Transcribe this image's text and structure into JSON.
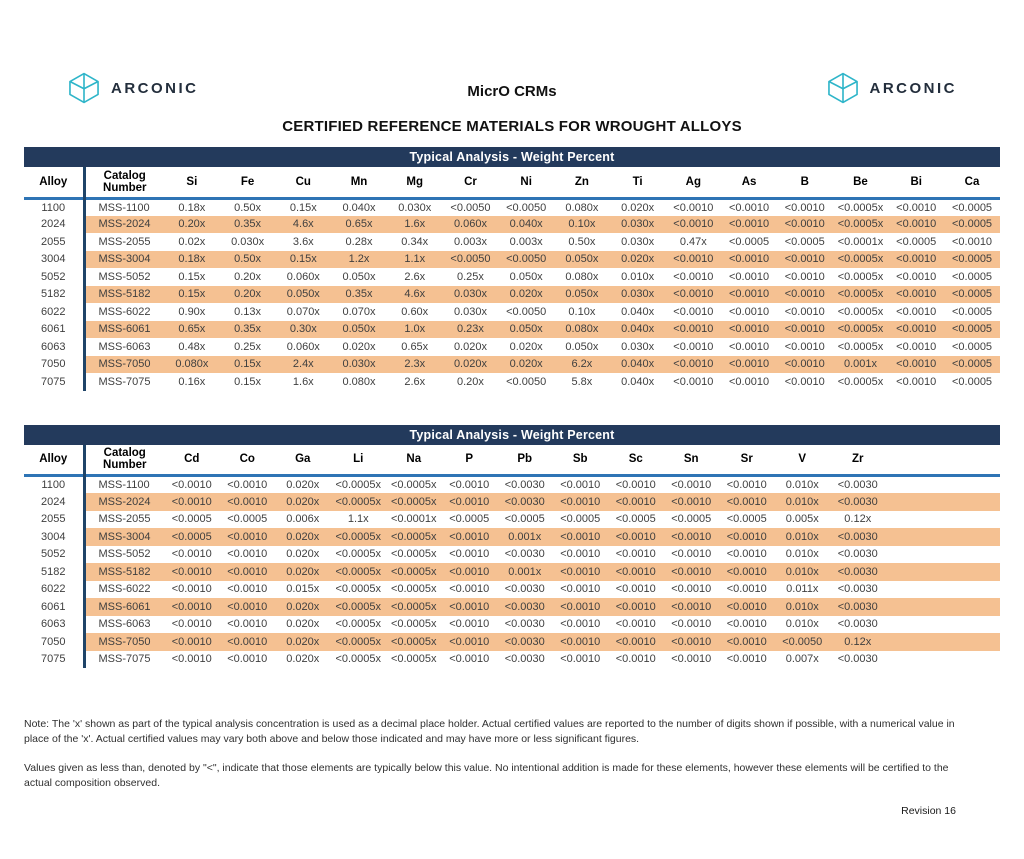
{
  "colors": {
    "navy": "#233A5C",
    "rule": "#2E74B5",
    "bar": "#1F4468",
    "stripe": "#F5C192",
    "teal": "#2EB5C9",
    "text": "#3F3F3F"
  },
  "header": {
    "brand": "ARCONIC",
    "product": "MicrO CRMs",
    "title": "CERTIFIED REFERENCE MATERIALS FOR WROUGHT ALLOYS"
  },
  "tables": [
    {
      "banner": "Typical Analysis - Weight Percent",
      "columns": [
        "Alloy",
        "Catalog Number",
        "Si",
        "Fe",
        "Cu",
        "Mn",
        "Mg",
        "Cr",
        "Ni",
        "Zn",
        "Ti",
        "Ag",
        "As",
        "B",
        "Be",
        "Bi",
        "Ca"
      ],
      "rows": [
        {
          "alloy": "1100",
          "catalog": "MSS-1100",
          "values": [
            "0.18x",
            "0.50x",
            "0.15x",
            "0.040x",
            "0.030x",
            "<0.0050",
            "<0.0050",
            "0.080x",
            "0.020x",
            "<0.0010",
            "<0.0010",
            "<0.0010",
            "<0.0005x",
            "<0.0010",
            "<0.0005"
          ]
        },
        {
          "alloy": "2024",
          "catalog": "MSS-2024",
          "values": [
            "0.20x",
            "0.35x",
            "4.6x",
            "0.65x",
            "1.6x",
            "0.060x",
            "0.040x",
            "0.10x",
            "0.030x",
            "<0.0010",
            "<0.0010",
            "<0.0010",
            "<0.0005x",
            "<0.0010",
            "<0.0005"
          ]
        },
        {
          "alloy": "2055",
          "catalog": "MSS-2055",
          "values": [
            "0.02x",
            "0.030x",
            "3.6x",
            "0.28x",
            "0.34x",
            "0.003x",
            "0.003x",
            "0.50x",
            "0.030x",
            "0.47x",
            "<0.0005",
            "<0.0005",
            "<0.0001x",
            "<0.0005",
            "<0.0010"
          ]
        },
        {
          "alloy": "3004",
          "catalog": "MSS-3004",
          "values": [
            "0.18x",
            "0.50x",
            "0.15x",
            "1.2x",
            "1.1x",
            "<0.0050",
            "<0.0050",
            "0.050x",
            "0.020x",
            "<0.0010",
            "<0.0010",
            "<0.0010",
            "<0.0005x",
            "<0.0010",
            "<0.0005"
          ]
        },
        {
          "alloy": "5052",
          "catalog": "MSS-5052",
          "values": [
            "0.15x",
            "0.20x",
            "0.060x",
            "0.050x",
            "2.6x",
            "0.25x",
            "0.050x",
            "0.080x",
            "0.010x",
            "<0.0010",
            "<0.0010",
            "<0.0010",
            "<0.0005x",
            "<0.0010",
            "<0.0005"
          ]
        },
        {
          "alloy": "5182",
          "catalog": "MSS-5182",
          "values": [
            "0.15x",
            "0.20x",
            "0.050x",
            "0.35x",
            "4.6x",
            "0.030x",
            "0.020x",
            "0.050x",
            "0.030x",
            "<0.0010",
            "<0.0010",
            "<0.0010",
            "<0.0005x",
            "<0.0010",
            "<0.0005"
          ]
        },
        {
          "alloy": "6022",
          "catalog": "MSS-6022",
          "values": [
            "0.90x",
            "0.13x",
            "0.070x",
            "0.070x",
            "0.60x",
            "0.030x",
            "<0.0050",
            "0.10x",
            "0.040x",
            "<0.0010",
            "<0.0010",
            "<0.0010",
            "<0.0005x",
            "<0.0010",
            "<0.0005"
          ]
        },
        {
          "alloy": "6061",
          "catalog": "MSS-6061",
          "values": [
            "0.65x",
            "0.35x",
            "0.30x",
            "0.050x",
            "1.0x",
            "0.23x",
            "0.050x",
            "0.080x",
            "0.040x",
            "<0.0010",
            "<0.0010",
            "<0.0010",
            "<0.0005x",
            "<0.0010",
            "<0.0005"
          ]
        },
        {
          "alloy": "6063",
          "catalog": "MSS-6063",
          "values": [
            "0.48x",
            "0.25x",
            "0.060x",
            "0.020x",
            "0.65x",
            "0.020x",
            "0.020x",
            "0.050x",
            "0.030x",
            "<0.0010",
            "<0.0010",
            "<0.0010",
            "<0.0005x",
            "<0.0010",
            "<0.0005"
          ]
        },
        {
          "alloy": "7050",
          "catalog": "MSS-7050",
          "values": [
            "0.080x",
            "0.15x",
            "2.4x",
            "0.030x",
            "2.3x",
            "0.020x",
            "0.020x",
            "6.2x",
            "0.040x",
            "<0.0010",
            "<0.0010",
            "<0.0010",
            "0.001x",
            "<0.0010",
            "<0.0005"
          ]
        },
        {
          "alloy": "7075",
          "catalog": "MSS-7075",
          "values": [
            "0.16x",
            "0.15x",
            "1.6x",
            "0.080x",
            "2.6x",
            "0.20x",
            "<0.0050",
            "5.8x",
            "0.040x",
            "<0.0010",
            "<0.0010",
            "<0.0010",
            "<0.0005x",
            "<0.0010",
            "<0.0005"
          ]
        }
      ]
    },
    {
      "banner": "Typical Analysis - Weight Percent",
      "columns": [
        "Alloy",
        "Catalog Number",
        "Cd",
        "Co",
        "Ga",
        "Li",
        "Na",
        "P",
        "Pb",
        "Sb",
        "Sc",
        "Sn",
        "Sr",
        "V",
        "Zr"
      ],
      "rows": [
        {
          "alloy": "1100",
          "catalog": "MSS-1100",
          "values": [
            "<0.0010",
            "<0.0010",
            "0.020x",
            "<0.0005x",
            "<0.0005x",
            "<0.0010",
            "<0.0030",
            "<0.0010",
            "<0.0010",
            "<0.0010",
            "<0.0010",
            "0.010x",
            "<0.0030"
          ]
        },
        {
          "alloy": "2024",
          "catalog": "MSS-2024",
          "values": [
            "<0.0010",
            "<0.0010",
            "0.020x",
            "<0.0005x",
            "<0.0005x",
            "<0.0010",
            "<0.0030",
            "<0.0010",
            "<0.0010",
            "<0.0010",
            "<0.0010",
            "0.010x",
            "<0.0030"
          ]
        },
        {
          "alloy": "2055",
          "catalog": "MSS-2055",
          "values": [
            "<0.0005",
            "<0.0005",
            "0.006x",
            "1.1x",
            "<0.0001x",
            "<0.0005",
            "<0.0005",
            "<0.0005",
            "<0.0005",
            "<0.0005",
            "<0.0005",
            "0.005x",
            "0.12x"
          ]
        },
        {
          "alloy": "3004",
          "catalog": "MSS-3004",
          "values": [
            "<0.0005",
            "<0.0010",
            "0.020x",
            "<0.0005x",
            "<0.0005x",
            "<0.0010",
            "0.001x",
            "<0.0010",
            "<0.0010",
            "<0.0010",
            "<0.0010",
            "0.010x",
            "<0.0030"
          ]
        },
        {
          "alloy": "5052",
          "catalog": "MSS-5052",
          "values": [
            "<0.0010",
            "<0.0010",
            "0.020x",
            "<0.0005x",
            "<0.0005x",
            "<0.0010",
            "<0.0030",
            "<0.0010",
            "<0.0010",
            "<0.0010",
            "<0.0010",
            "0.010x",
            "<0.0030"
          ]
        },
        {
          "alloy": "5182",
          "catalog": "MSS-5182",
          "values": [
            "<0.0010",
            "<0.0010",
            "0.020x",
            "<0.0005x",
            "<0.0005x",
            "<0.0010",
            "0.001x",
            "<0.0010",
            "<0.0010",
            "<0.0010",
            "<0.0010",
            "0.010x",
            "<0.0030"
          ]
        },
        {
          "alloy": "6022",
          "catalog": "MSS-6022",
          "values": [
            "<0.0010",
            "<0.0010",
            "0.015x",
            "<0.0005x",
            "<0.0005x",
            "<0.0010",
            "<0.0030",
            "<0.0010",
            "<0.0010",
            "<0.0010",
            "<0.0010",
            "0.011x",
            "<0.0030"
          ]
        },
        {
          "alloy": "6061",
          "catalog": "MSS-6061",
          "values": [
            "<0.0010",
            "<0.0010",
            "0.020x",
            "<0.0005x",
            "<0.0005x",
            "<0.0010",
            "<0.0030",
            "<0.0010",
            "<0.0010",
            "<0.0010",
            "<0.0010",
            "0.010x",
            "<0.0030"
          ]
        },
        {
          "alloy": "6063",
          "catalog": "MSS-6063",
          "values": [
            "<0.0010",
            "<0.0010",
            "0.020x",
            "<0.0005x",
            "<0.0005x",
            "<0.0010",
            "<0.0030",
            "<0.0010",
            "<0.0010",
            "<0.0010",
            "<0.0010",
            "0.010x",
            "<0.0030"
          ]
        },
        {
          "alloy": "7050",
          "catalog": "MSS-7050",
          "values": [
            "<0.0010",
            "<0.0010",
            "0.020x",
            "<0.0005x",
            "<0.0005x",
            "<0.0010",
            "<0.0030",
            "<0.0010",
            "<0.0010",
            "<0.0010",
            "<0.0010",
            "<0.0050",
            "0.12x"
          ]
        },
        {
          "alloy": "7075",
          "catalog": "MSS-7075",
          "values": [
            "<0.0010",
            "<0.0010",
            "0.020x",
            "<0.0005x",
            "<0.0005x",
            "<0.0010",
            "<0.0030",
            "<0.0010",
            "<0.0010",
            "<0.0010",
            "<0.0010",
            "0.007x",
            "<0.0030"
          ]
        }
      ]
    }
  ],
  "notes": {
    "paragraph1": "Note:  The 'x' shown as part of the typical analysis concentration is used as a decimal place holder.  Actual certified values are reported to the number of digits shown if possible, with a numerical value in place of the 'x'.  Actual certified values may vary both above and below those indicated and may have more or less significant figures.",
    "paragraph2": "Values given as less than, denoted by \"<\", indicate that those elements are typically below this value.  No intentional addition is made for these elements, however  these elements will be certified to the actual composition observed."
  },
  "revision": "Revision 16"
}
